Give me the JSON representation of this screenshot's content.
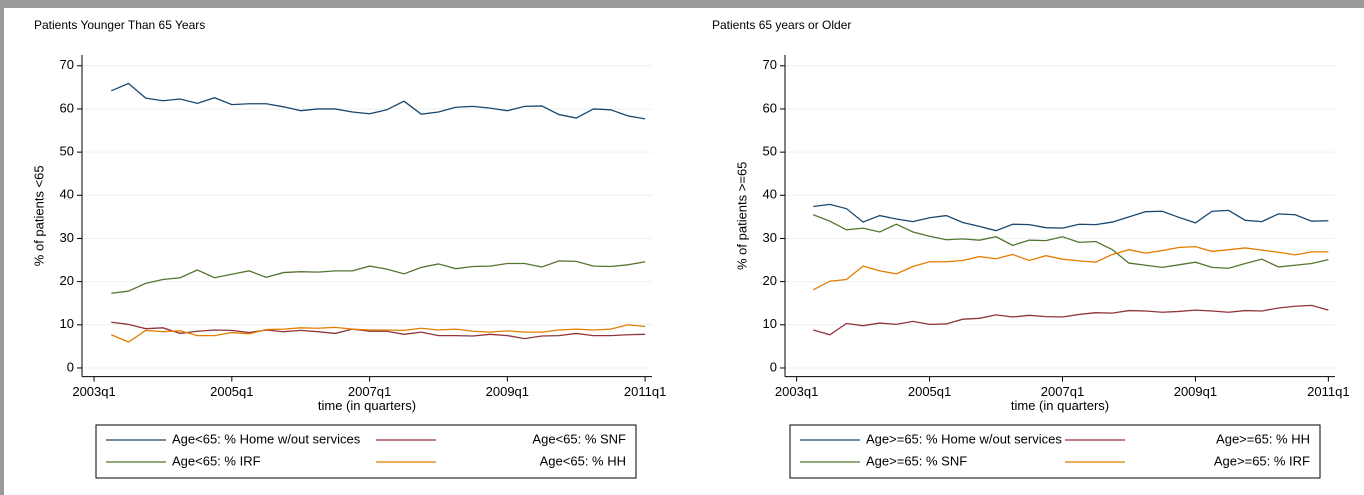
{
  "chart_data": [
    {
      "type": "line",
      "title": "Patients Younger Than 65 Years",
      "x_label": "time (in quarters)",
      "y_label": "% of patients <65",
      "x": [
        173,
        174,
        175,
        176,
        177,
        178,
        179,
        180,
        181,
        182,
        183,
        184,
        185,
        186,
        187,
        188,
        189,
        190,
        191,
        192,
        193,
        194,
        195,
        196,
        197,
        198,
        199,
        200,
        201,
        202,
        203,
        204
      ],
      "xlim": [
        171.3,
        204.4
      ],
      "xticks": [
        {
          "value": 172,
          "label": "2003q1"
        },
        {
          "value": 180,
          "label": "2005q1"
        },
        {
          "value": 188,
          "label": "2007q1"
        },
        {
          "value": 196,
          "label": "2009q1"
        },
        {
          "value": 204,
          "label": "2011q1"
        }
      ],
      "ylim": [
        -2,
        72.5
      ],
      "yticks": [
        0,
        10,
        20,
        30,
        40,
        50,
        60,
        70
      ],
      "grid": true,
      "legend_columns": 2,
      "series": [
        {
          "name": "Age<65: % Home w/out services",
          "color": "#1a476f",
          "values": [
            64.2,
            65.9,
            62.5,
            61.9,
            62.3,
            61.3,
            62.6,
            61.0,
            61.2,
            61.2,
            60.5,
            59.6,
            60.0,
            60.0,
            59.3,
            58.9,
            59.8,
            61.8,
            58.8,
            59.3,
            60.4,
            60.6,
            60.2,
            59.6,
            60.6,
            60.7,
            58.7,
            57.9,
            60.0,
            59.8,
            58.4,
            57.7
          ]
        },
        {
          "name": "Age<65: % SNF",
          "color": "#90353b",
          "values": [
            10.6,
            10.1,
            9.1,
            9.3,
            8.0,
            8.5,
            8.8,
            8.7,
            8.2,
            8.8,
            8.4,
            8.7,
            8.4,
            8.0,
            9.0,
            8.5,
            8.5,
            7.8,
            8.3,
            7.5,
            7.5,
            7.4,
            7.8,
            7.5,
            6.8,
            7.4,
            7.5,
            8.0,
            7.5,
            7.5,
            7.7,
            7.8
          ]
        },
        {
          "name": "Age<65: % IRF",
          "color": "#55752f",
          "values": [
            17.3,
            17.8,
            19.6,
            20.5,
            20.9,
            22.7,
            20.9,
            21.7,
            22.5,
            21.0,
            22.1,
            22.3,
            22.2,
            22.5,
            22.5,
            23.6,
            22.9,
            21.8,
            23.3,
            24.1,
            23.0,
            23.5,
            23.6,
            24.2,
            24.2,
            23.4,
            24.8,
            24.7,
            23.6,
            23.5,
            23.9,
            24.6
          ]
        },
        {
          "name": "Age<65: % HH",
          "color": "#e37e00",
          "values": [
            7.7,
            6.0,
            8.7,
            8.4,
            8.6,
            7.5,
            7.5,
            8.2,
            7.9,
            8.9,
            9.0,
            9.3,
            9.2,
            9.4,
            9.0,
            8.8,
            8.8,
            8.7,
            9.2,
            8.8,
            9.0,
            8.5,
            8.3,
            8.6,
            8.3,
            8.3,
            8.8,
            9.0,
            8.8,
            9.0,
            10.0,
            9.6
          ]
        }
      ]
    },
    {
      "type": "line",
      "title": "Patients 65 years or Older",
      "x_label": "time (in quarters)",
      "y_label": "% of patients >=65",
      "x": [
        173,
        174,
        175,
        176,
        177,
        178,
        179,
        180,
        181,
        182,
        183,
        184,
        185,
        186,
        187,
        188,
        189,
        190,
        191,
        192,
        193,
        194,
        195,
        196,
        197,
        198,
        199,
        200,
        201,
        202,
        203,
        204
      ],
      "xlim": [
        171.3,
        204.4
      ],
      "xticks": [
        {
          "value": 172,
          "label": "2003q1"
        },
        {
          "value": 180,
          "label": "2005q1"
        },
        {
          "value": 188,
          "label": "2007q1"
        },
        {
          "value": 196,
          "label": "2009q1"
        },
        {
          "value": 204,
          "label": "2011q1"
        }
      ],
      "ylim": [
        -2,
        72.5
      ],
      "yticks": [
        0,
        10,
        20,
        30,
        40,
        50,
        60,
        70
      ],
      "grid": true,
      "legend_columns": 2,
      "series": [
        {
          "name": "Age>=65: % Home w/out services",
          "color": "#1a476f",
          "values": [
            37.4,
            37.9,
            36.9,
            33.8,
            35.3,
            34.5,
            33.9,
            34.8,
            35.3,
            33.7,
            32.8,
            31.8,
            33.3,
            33.2,
            32.5,
            32.4,
            33.3,
            33.2,
            33.8,
            35.0,
            36.2,
            36.3,
            34.9,
            33.6,
            36.3,
            36.5,
            34.2,
            33.9,
            35.7,
            35.5,
            34.0,
            34.1
          ]
        },
        {
          "name": "Age>=65: % HH",
          "color": "#90353b",
          "values": [
            8.8,
            7.7,
            10.3,
            9.8,
            10.4,
            10.1,
            10.8,
            10.1,
            10.2,
            11.3,
            11.5,
            12.3,
            11.8,
            12.2,
            11.9,
            11.8,
            12.4,
            12.8,
            12.7,
            13.3,
            13.2,
            12.9,
            13.1,
            13.4,
            13.2,
            12.9,
            13.3,
            13.2,
            13.9,
            14.3,
            14.5,
            13.4
          ]
        },
        {
          "name": "Age>=65: % SNF",
          "color": "#55752f",
          "values": [
            35.5,
            34.0,
            32.0,
            32.4,
            31.5,
            33.3,
            31.5,
            30.5,
            29.7,
            29.9,
            29.6,
            30.4,
            28.4,
            29.6,
            29.5,
            30.4,
            29.1,
            29.3,
            27.4,
            24.3,
            23.8,
            23.3,
            23.9,
            24.5,
            23.3,
            23.1,
            24.2,
            25.2,
            23.4,
            23.8,
            24.2,
            25.1
          ]
        },
        {
          "name": "Age>=65: % IRF",
          "color": "#e37e00",
          "values": [
            18.1,
            20.1,
            20.5,
            23.6,
            22.5,
            21.8,
            23.5,
            24.6,
            24.6,
            24.9,
            25.8,
            25.3,
            26.3,
            24.9,
            26.0,
            25.2,
            24.8,
            24.5,
            26.3,
            27.4,
            26.6,
            27.2,
            27.9,
            28.1,
            27.0,
            27.4,
            27.8,
            27.3,
            26.8,
            26.2,
            26.9,
            26.9
          ]
        }
      ]
    }
  ]
}
